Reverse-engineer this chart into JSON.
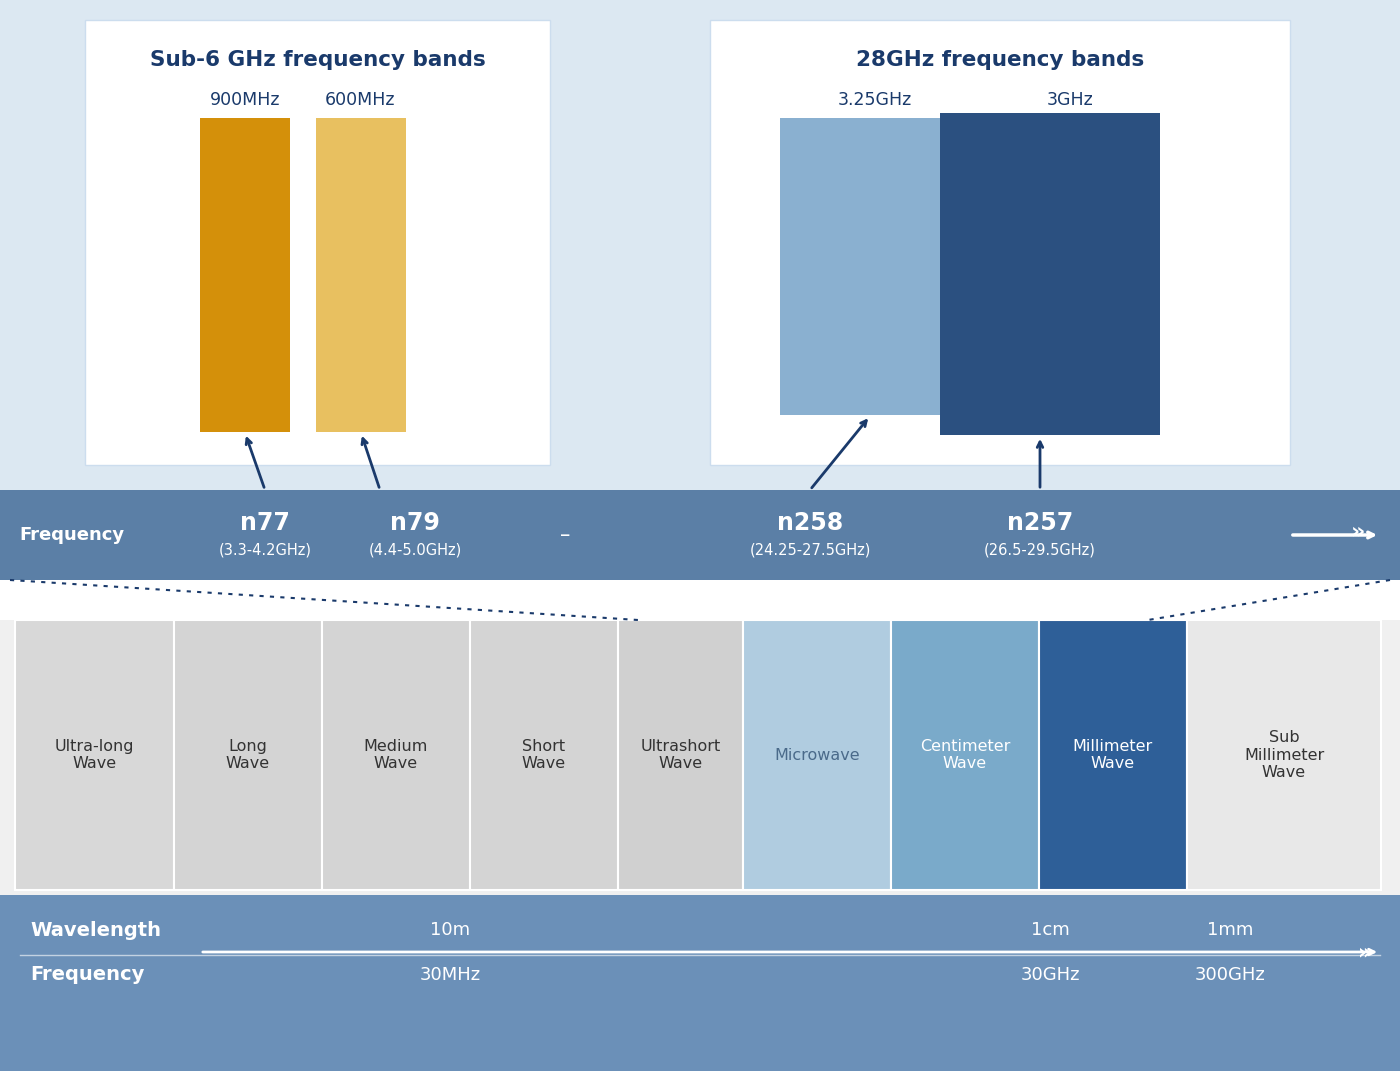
{
  "bg_top": "#dce8f2",
  "bg_freq_bar": "#5b7fa6",
  "bg_bottom_bar": "#6b90b8",
  "sub6_title": "Sub-6 GHz frequency bands",
  "sub6_title_color": "#1a3a6b",
  "sub6_bar1_label": "900MHz",
  "sub6_bar2_label": "600MHz",
  "sub6_bar1_color": "#d4900a",
  "sub6_bar2_color": "#e8c060",
  "mmw_title": "28GHz frequency bands",
  "mmw_title_color": "#1a3a6b",
  "mmw_bar1_label": "3.25GHz",
  "mmw_bar2_label": "3GHz",
  "mmw_bar1_color": "#8ab0d0",
  "mmw_bar2_color": "#2b5080",
  "arrow_color": "#1a3a6b",
  "dotted_line_color": "#1a3a6b",
  "wave_categories": [
    "Ultra-long\nWave",
    "Long\nWave",
    "Medium\nWave",
    "Short\nWave",
    "Ultrashort\nWave",
    "Microwave",
    "Centimeter\nWave",
    "Millimeter\nWave",
    "Sub\nMillimeter\nWave"
  ],
  "wave_colors": [
    "#d8d8d8",
    "#d4d4d4",
    "#d4d4d4",
    "#d4d4d4",
    "#d0d0d0",
    "#b0cce0",
    "#7aaaca",
    "#2e5f98",
    "#e8e8e8"
  ],
  "wave_text_colors": [
    "#333333",
    "#333333",
    "#333333",
    "#333333",
    "#333333",
    "#4a6a8a",
    "#ffffff",
    "#ffffff",
    "#333333"
  ],
  "wavelength_label": "Wavelength",
  "wavelength_values": [
    "10m",
    "1cm",
    "1mm"
  ],
  "frequency_label": "Frequency",
  "frequency_values": [
    "30MHz",
    "30GHz",
    "300GHz"
  ]
}
